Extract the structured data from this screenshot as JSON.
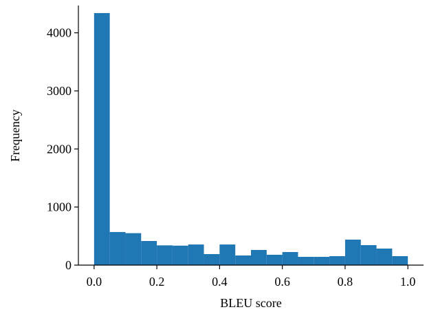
{
  "chart_data": {
    "type": "histogram",
    "x_label": "BLEU score",
    "y_label": "Frequency",
    "bins": [
      0,
      0.05,
      0.1,
      0.15,
      0.2,
      0.25,
      0.3,
      0.35,
      0.4,
      0.45,
      0.5,
      0.55,
      0.6,
      0.65,
      0.7,
      0.75,
      0.8,
      0.85,
      0.9,
      0.95,
      1.0
    ],
    "values": [
      4340,
      570,
      550,
      415,
      340,
      335,
      355,
      190,
      355,
      166,
      261,
      178,
      225,
      142,
      142,
      154,
      439,
      344,
      285,
      154
    ],
    "color": "#1f77b4",
    "xlim": [
      -0.05,
      1.05
    ],
    "xticks": [
      {
        "value": 0,
        "label": "0.0"
      },
      0.2,
      0.4,
      0.6,
      0.8,
      {
        "value": 1,
        "label": "1.0"
      }
    ],
    "ylim": [
      0,
      4470
    ],
    "yticks": [
      0,
      1000,
      2000,
      3000,
      4000
    ]
  }
}
